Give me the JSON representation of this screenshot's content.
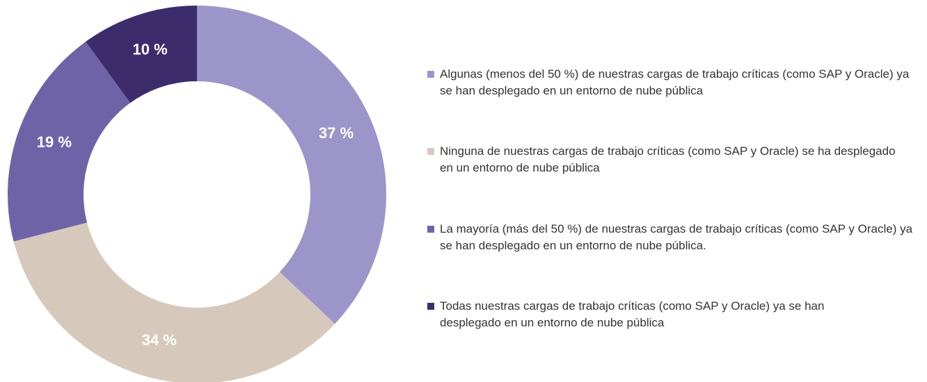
{
  "chart_data": {
    "type": "pie",
    "donut": true,
    "categories": [
      "Algunas (menos del 50 %) de nuestras cargas de trabajo críticas (como SAP y Oracle) ya se han desplegado en un entorno de nube pública",
      "Ninguna de nuestras cargas de trabajo críticas (como SAP y Oracle) se ha desplegado en un entorno de nube pública",
      "La mayoría (más del 50 %) de nuestras cargas de trabajo críticas (como SAP y Oracle) ya se han desplegado en un entorno de nube pública.",
      "Todas nuestras cargas de trabajo críticas (como SAP y Oracle) ya se han desplegado en un entorno de nube pública"
    ],
    "values": [
      37,
      34,
      19,
      10
    ],
    "value_labels": [
      "37 %",
      "34 %",
      "19 %",
      "10 %"
    ],
    "colors": [
      "#9b95c9",
      "#d6c9bc",
      "#6f63a8",
      "#3d2c6c"
    ],
    "legend": "right"
  }
}
